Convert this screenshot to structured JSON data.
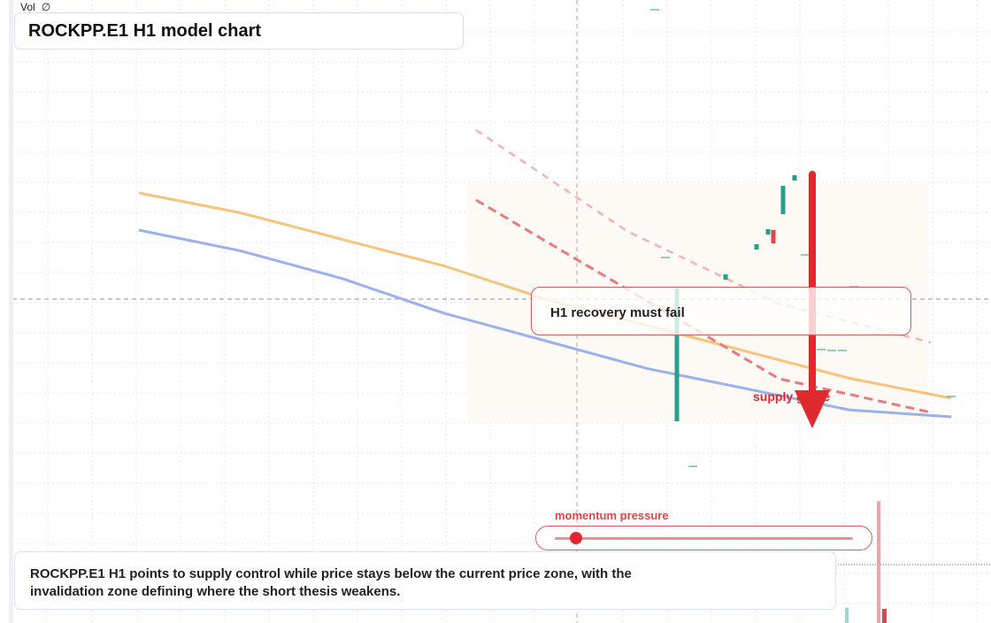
{
  "header": {
    "indicator_label": "Vol",
    "indicator_value_icon": "∅",
    "title": "ROCKPP.E1 H1 model chart"
  },
  "annotations": {
    "callout": "H1 recovery must fail",
    "arrow_label": "supply grade",
    "momentum_label": "momentum pressure",
    "momentum_level": 0.07
  },
  "summary": {
    "text": "ROCKPP.E1 H1 points to supply control while price stays below the current price zone, with the invalidation zone defining where the short thesis weakens."
  },
  "colors": {
    "bullish_candle": "#26a08e",
    "bearish_candle": "#e0474c",
    "ma_fast": "#f6c47a",
    "ma_slow": "#9ab0ef",
    "trendline": "#e87b7e",
    "arrow": "#e0292f",
    "grid": "#e3e7ee"
  },
  "chart_data": {
    "type": "candlestick",
    "title": "ROCKPP.E1 H1 model chart",
    "symbol": "ROCKPP.E1",
    "timeframe": "H1",
    "xlabel": "",
    "ylabel": "",
    "tick_labels_visible": false,
    "grid": true,
    "candles": [
      {
        "bar": 0,
        "open": 1.0,
        "high": 1.0,
        "low": 1.0,
        "close": 1.0,
        "dir": "flat"
      },
      {
        "bar": 1,
        "open": 0.78,
        "high": 0.78,
        "low": 0.78,
        "close": 0.78,
        "dir": "flat"
      },
      {
        "bar": 2,
        "open": 0.51,
        "high": 0.62,
        "low": 0.08,
        "close": 0.62,
        "dir": "up"
      },
      {
        "bar": 3,
        "open": 0.17,
        "high": 0.17,
        "low": 0.17,
        "close": 0.17,
        "dir": "flat"
      },
      {
        "bar": 4,
        "open": 0.69,
        "high": 0.69,
        "low": 0.66,
        "close": 0.69,
        "dir": "up"
      },
      {
        "bar": 5,
        "open": 0.79,
        "high": 0.79,
        "low": 0.77,
        "close": 0.79,
        "dir": "up"
      },
      {
        "bar": 6,
        "open": 0.8,
        "high": 0.81,
        "low": 0.8,
        "close": 0.81,
        "dir": "up"
      },
      {
        "bar": 7,
        "open": 0.8,
        "high": 0.82,
        "low": 0.79,
        "close": 0.79,
        "dir": "down"
      },
      {
        "bar": 8,
        "open": 0.84,
        "high": 0.86,
        "low": 0.8,
        "close": 0.84,
        "dir": "up"
      },
      {
        "bar": 9,
        "open": 0.86,
        "high": 0.88,
        "low": 0.84,
        "close": 0.88,
        "dir": "up"
      },
      {
        "bar": 10,
        "open": 0.75,
        "high": 0.75,
        "low": 0.75,
        "close": 0.75,
        "dir": "flat"
      },
      {
        "bar": 11,
        "open": 0.62,
        "high": 0.62,
        "low": 0.62,
        "close": 0.62,
        "dir": "flat"
      },
      {
        "bar": 12,
        "open": 0.56,
        "high": 0.56,
        "low": 0.56,
        "close": 0.56,
        "dir": "flat"
      },
      {
        "bar": 13,
        "open": 0.55,
        "high": 0.55,
        "low": 0.55,
        "close": 0.55,
        "dir": "flat"
      },
      {
        "bar": 14,
        "open": 0.45,
        "high": 0.45,
        "low": 0.45,
        "close": 0.45,
        "dir": "flat"
      },
      {
        "bar": 15,
        "open": 0.47,
        "high": 0.47,
        "low": 0.47,
        "close": 0.47,
        "dir": "flat"
      }
    ],
    "series": [
      {
        "type": "moving-average",
        "style": "solid",
        "color": "#f6c47a",
        "values": [
          0.8,
          0.77,
          0.73,
          0.69,
          0.64,
          0.6,
          0.56,
          0.52,
          0.49
        ]
      },
      {
        "type": "moving-average",
        "style": "solid",
        "color": "#9ab0ef",
        "values": [
          0.72,
          0.69,
          0.65,
          0.6,
          0.56,
          0.52,
          0.49,
          0.46,
          0.45
        ]
      },
      {
        "type": "trendline",
        "style": "dashed",
        "color": "#e87b7e",
        "values": [
          0.85,
          0.69,
          0.53,
          0.47
        ]
      },
      {
        "type": "trendline",
        "style": "dashed-light",
        "color": "#f2b3b4",
        "values": [
          1.0,
          0.79,
          0.64,
          0.56
        ]
      }
    ],
    "volume_bars": [
      {
        "bar": 14,
        "level": 0.95,
        "dir": "down"
      },
      {
        "bar": 13,
        "level": 0.12,
        "dir": "up"
      }
    ]
  }
}
